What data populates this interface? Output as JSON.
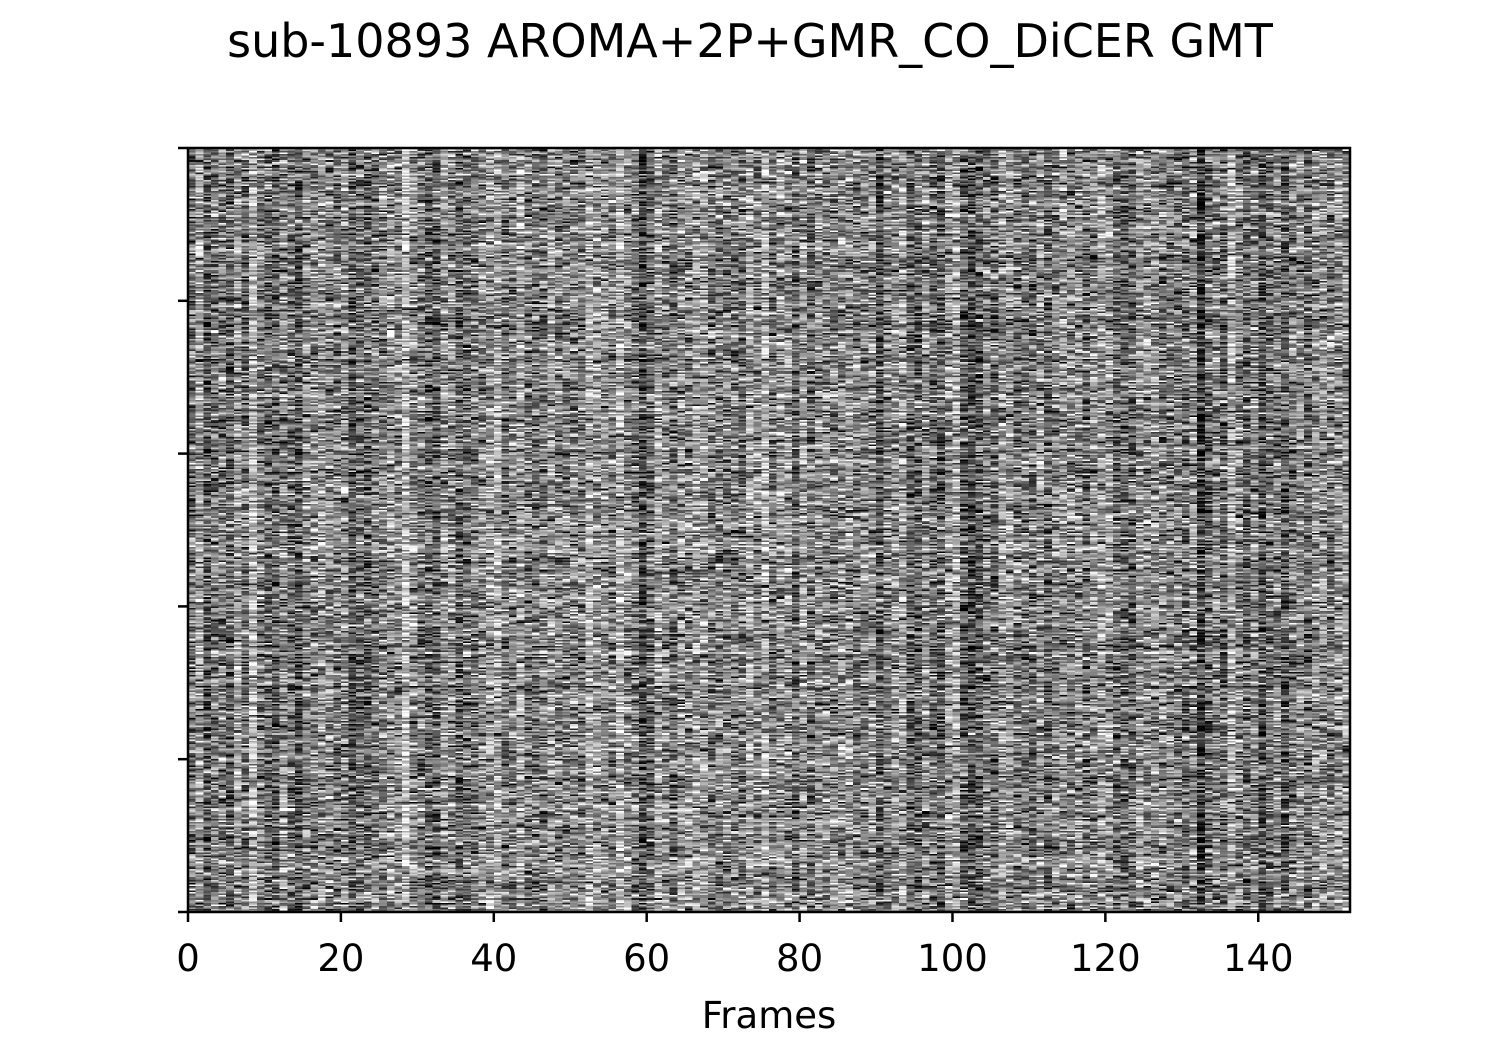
{
  "chart_data": {
    "type": "heatmap",
    "title": "sub-10893 AROMA+2P+GMR_CO_DiCER GMT",
    "xlabel": "Frames",
    "ylabel": "",
    "xlim": [
      0,
      152
    ],
    "x_ticks": [
      0,
      20,
      40,
      60,
      80,
      100,
      120,
      140
    ],
    "x_tick_labels": [
      "0",
      "20",
      "40",
      "60",
      "80",
      "100",
      "120",
      "140"
    ],
    "y_ticks_count": 6,
    "y_tick_labels": [],
    "colormap": "gray",
    "colors": {
      "low": "#000000",
      "high": "#ffffff",
      "frame": "#000000"
    },
    "grid": false,
    "legend": "none",
    "n_frames": 152,
    "n_rows": 500,
    "values_note": "random-looking grayscale carpet of standardized signal across all frames"
  }
}
